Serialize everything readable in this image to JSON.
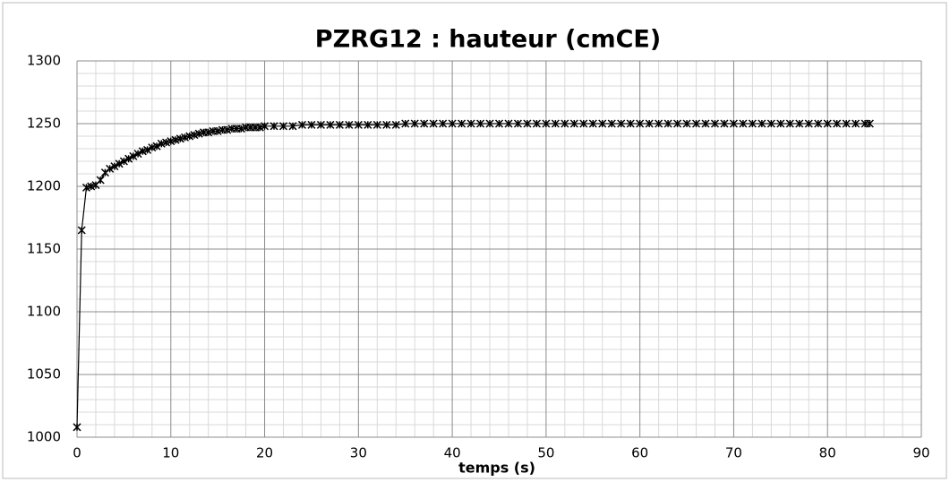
{
  "chart_data": {
    "type": "line",
    "title": "PZRG12 : hauteur (cmCE)",
    "x_label": "temps (s)",
    "x": [
      0,
      0.5,
      1,
      1.5,
      2,
      2.5,
      3,
      3.5,
      4,
      4.5,
      5,
      5.5,
      6,
      6.5,
      7,
      7.5,
      8,
      8.5,
      9,
      9.5,
      10,
      10.5,
      11,
      11.5,
      12,
      12.5,
      13,
      13.5,
      14,
      14.5,
      15,
      15.5,
      16,
      16.5,
      17,
      17.5,
      18,
      18.5,
      19,
      19.5,
      20,
      21,
      22,
      23,
      24,
      25,
      26,
      27,
      28,
      29,
      30,
      31,
      32,
      33,
      34,
      35,
      36,
      37,
      38,
      39,
      40,
      41,
      42,
      43,
      44,
      45,
      46,
      47,
      48,
      49,
      50,
      51,
      52,
      53,
      54,
      55,
      56,
      57,
      58,
      59,
      60,
      61,
      62,
      63,
      64,
      65,
      66,
      67,
      68,
      69,
      70,
      71,
      72,
      73,
      74,
      75,
      76,
      77,
      78,
      79,
      80,
      81,
      82,
      83,
      84,
      84.5
    ],
    "series": [
      {
        "name": "hauteur",
        "color": "#000000",
        "values": [
          1008,
          1165,
          1199,
          1200,
          1201,
          1205,
          1211,
          1214,
          1216,
          1218,
          1220,
          1222,
          1224,
          1226,
          1228,
          1229,
          1231,
          1232,
          1234,
          1235,
          1236,
          1237,
          1238,
          1239,
          1240,
          1241,
          1242,
          1243,
          1243,
          1244,
          1244,
          1245,
          1245,
          1246,
          1246,
          1246,
          1247,
          1247,
          1247,
          1247,
          1248,
          1248,
          1248,
          1248,
          1249,
          1249,
          1249,
          1249,
          1249,
          1249,
          1249,
          1249,
          1249,
          1249,
          1249,
          1250,
          1250,
          1250,
          1250,
          1250,
          1250,
          1250,
          1250,
          1250,
          1250,
          1250,
          1250,
          1250,
          1250,
          1250,
          1250,
          1250,
          1250,
          1250,
          1250,
          1250,
          1250,
          1250,
          1250,
          1250,
          1250,
          1250,
          1250,
          1250,
          1250,
          1250,
          1250,
          1250,
          1250,
          1250,
          1250,
          1250,
          1250,
          1250,
          1250,
          1250,
          1250,
          1250,
          1250,
          1250,
          1250,
          1250,
          1250,
          1250,
          1250,
          1250
        ]
      }
    ],
    "xlim": [
      0,
      90
    ],
    "xticks": [
      0,
      10,
      20,
      30,
      40,
      50,
      60,
      70,
      80,
      90
    ],
    "ylim": [
      1000,
      1300
    ],
    "yticks": [
      1000,
      1050,
      1100,
      1150,
      1200,
      1250,
      1300
    ],
    "grid": true,
    "minor_grid": true,
    "legend": false
  }
}
